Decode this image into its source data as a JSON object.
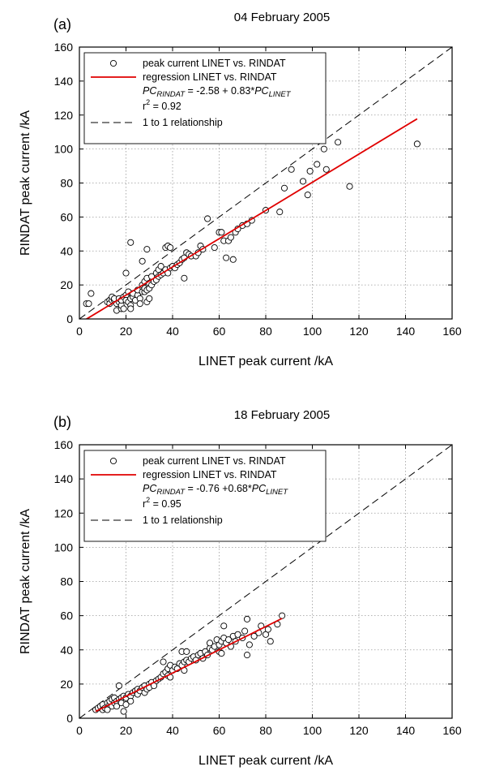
{
  "colors": {
    "regression": "#e00000",
    "one_to_one": "#000000",
    "points": "#000000"
  },
  "chart_data": [
    {
      "type": "scatter",
      "panel": "(a)",
      "title": "04 February 2005",
      "xlabel": "LINET peak current /kA",
      "ylabel": "RINDAT peak current /kA",
      "xlim": [
        0,
        160
      ],
      "ylim": [
        0,
        160
      ],
      "xticks": [
        0,
        20,
        40,
        60,
        80,
        100,
        120,
        140,
        160
      ],
      "yticks": [
        0,
        20,
        40,
        60,
        80,
        100,
        120,
        140,
        160
      ],
      "grid": true,
      "legend_placement": "top-left",
      "legend": {
        "points": "peak current LINET vs. RINDAT",
        "regression": "regression LINET vs. RINDAT",
        "eq_y": "PC",
        "eq_y_sub": "RINDAT",
        "eq_mid": " = -2.58 + 0.83*",
        "eq_x": "PC",
        "eq_x_sub": "LINET",
        "r2_prefix": "r",
        "r2_sup": "2",
        "r2_value": " = 0.92",
        "one_to_one": "1 to 1 relationship"
      },
      "regression": {
        "intercept": -2.58,
        "slope": 0.83,
        "x_range": [
          3,
          145
        ]
      },
      "one_to_one": {
        "x_range": [
          0,
          160
        ]
      },
      "points": [
        [
          3,
          9
        ],
        [
          4,
          9
        ],
        [
          5,
          15
        ],
        [
          12,
          10
        ],
        [
          13,
          11
        ],
        [
          13,
          9
        ],
        [
          14,
          11
        ],
        [
          14,
          13
        ],
        [
          15,
          11
        ],
        [
          15,
          12
        ],
        [
          16,
          9
        ],
        [
          16,
          5
        ],
        [
          17,
          10
        ],
        [
          17,
          12
        ],
        [
          18,
          6
        ],
        [
          18,
          8
        ],
        [
          18,
          11
        ],
        [
          19,
          13
        ],
        [
          19,
          6
        ],
        [
          20,
          14
        ],
        [
          20,
          27
        ],
        [
          20,
          11
        ],
        [
          21,
          10
        ],
        [
          21,
          16
        ],
        [
          22,
          45
        ],
        [
          22,
          12
        ],
        [
          22,
          8
        ],
        [
          22,
          6
        ],
        [
          23,
          13
        ],
        [
          23,
          15
        ],
        [
          24,
          11
        ],
        [
          25,
          14
        ],
        [
          25,
          17
        ],
        [
          26,
          12
        ],
        [
          26,
          9
        ],
        [
          27,
          16
        ],
        [
          27,
          20
        ],
        [
          27,
          34
        ],
        [
          28,
          16
        ],
        [
          28,
          18
        ],
        [
          28,
          22
        ],
        [
          29,
          10
        ],
        [
          29,
          17
        ],
        [
          29,
          24
        ],
        [
          29,
          41
        ],
        [
          30,
          18
        ],
        [
          30,
          21
        ],
        [
          30,
          12
        ],
        [
          31,
          25
        ],
        [
          31,
          20
        ],
        [
          32,
          22
        ],
        [
          33,
          23
        ],
        [
          33,
          27
        ],
        [
          34,
          25
        ],
        [
          34,
          29
        ],
        [
          35,
          26
        ],
        [
          35,
          31
        ],
        [
          36,
          27
        ],
        [
          37,
          29
        ],
        [
          37,
          42
        ],
        [
          38,
          43
        ],
        [
          38,
          27
        ],
        [
          39,
          42
        ],
        [
          39,
          30
        ],
        [
          40,
          31
        ],
        [
          41,
          30
        ],
        [
          42,
          32
        ],
        [
          43,
          33
        ],
        [
          44,
          35
        ],
        [
          45,
          24
        ],
        [
          45,
          36
        ],
        [
          46,
          39
        ],
        [
          47,
          38
        ],
        [
          48,
          37
        ],
        [
          50,
          37
        ],
        [
          51,
          39
        ],
        [
          52,
          43
        ],
        [
          53,
          41
        ],
        [
          55,
          59
        ],
        [
          58,
          42
        ],
        [
          60,
          51
        ],
        [
          61,
          51
        ],
        [
          62,
          46
        ],
        [
          63,
          36
        ],
        [
          64,
          46
        ],
        [
          65,
          48
        ],
        [
          66,
          35
        ],
        [
          67,
          51
        ],
        [
          68,
          53
        ],
        [
          70,
          55
        ],
        [
          72,
          56
        ],
        [
          74,
          58
        ],
        [
          80,
          64
        ],
        [
          86,
          63
        ],
        [
          88,
          77
        ],
        [
          91,
          88
        ],
        [
          96,
          81
        ],
        [
          98,
          73
        ],
        [
          99,
          87
        ],
        [
          102,
          91
        ],
        [
          105,
          100
        ],
        [
          106,
          88
        ],
        [
          111,
          104
        ],
        [
          116,
          78
        ],
        [
          145,
          103
        ]
      ]
    },
    {
      "type": "scatter",
      "panel": "(b)",
      "title": "18 February 2005",
      "xlabel": "LINET peak current /kA",
      "ylabel": "RINDAT peak current /kA",
      "xlim": [
        0,
        160
      ],
      "ylim": [
        0,
        160
      ],
      "xticks": [
        0,
        20,
        40,
        60,
        80,
        100,
        120,
        140,
        160
      ],
      "yticks": [
        0,
        20,
        40,
        60,
        80,
        100,
        120,
        140,
        160
      ],
      "grid": true,
      "legend_placement": "top-left",
      "legend": {
        "points": "peak current LINET vs. RINDAT",
        "regression": "regression LINET vs. RINDAT",
        "eq_y": "PC",
        "eq_y_sub": "RINDAT",
        "eq_mid": " = -0.76 +0.68*",
        "eq_x": "PC",
        "eq_x_sub": "LINET",
        "r2_prefix": "r",
        "r2_sup": "2",
        "r2_value": " = 0.95",
        "one_to_one": "1 to 1 relationship"
      },
      "regression": {
        "intercept": -0.76,
        "slope": 0.68,
        "x_range": [
          7,
          87
        ]
      },
      "one_to_one": {
        "x_range": [
          0,
          160
        ]
      },
      "points": [
        [
          7,
          5
        ],
        [
          8,
          6
        ],
        [
          9,
          7
        ],
        [
          10,
          5
        ],
        [
          10,
          8
        ],
        [
          11,
          6
        ],
        [
          12,
          9
        ],
        [
          12,
          5
        ],
        [
          13,
          8
        ],
        [
          13,
          10
        ],
        [
          14,
          7
        ],
        [
          14,
          11
        ],
        [
          15,
          9
        ],
        [
          15,
          12
        ],
        [
          16,
          10
        ],
        [
          16,
          7
        ],
        [
          17,
          19
        ],
        [
          17,
          11
        ],
        [
          18,
          12
        ],
        [
          18,
          9
        ],
        [
          19,
          13
        ],
        [
          19,
          4
        ],
        [
          20,
          12
        ],
        [
          20,
          8
        ],
        [
          21,
          14
        ],
        [
          22,
          13
        ],
        [
          22,
          10
        ],
        [
          23,
          15
        ],
        [
          24,
          16
        ],
        [
          25,
          14
        ],
        [
          25,
          17
        ],
        [
          26,
          16
        ],
        [
          27,
          18
        ],
        [
          28,
          15
        ],
        [
          28,
          19
        ],
        [
          29,
          17
        ],
        [
          30,
          20
        ],
        [
          30,
          18
        ],
        [
          31,
          21
        ],
        [
          32,
          19
        ],
        [
          33,
          22
        ],
        [
          34,
          23
        ],
        [
          35,
          24
        ],
        [
          36,
          33
        ],
        [
          36,
          26
        ],
        [
          37,
          27
        ],
        [
          38,
          25
        ],
        [
          38,
          29
        ],
        [
          39,
          31
        ],
        [
          39,
          24
        ],
        [
          40,
          28
        ],
        [
          41,
          30
        ],
        [
          42,
          29
        ],
        [
          43,
          32
        ],
        [
          44,
          39
        ],
        [
          44,
          31
        ],
        [
          45,
          33
        ],
        [
          45,
          28
        ],
        [
          46,
          39
        ],
        [
          46,
          34
        ],
        [
          47,
          33
        ],
        [
          48,
          35
        ],
        [
          49,
          36
        ],
        [
          50,
          34
        ],
        [
          51,
          37
        ],
        [
          52,
          38
        ],
        [
          53,
          35
        ],
        [
          54,
          39
        ],
        [
          55,
          37
        ],
        [
          56,
          41
        ],
        [
          56,
          44
        ],
        [
          57,
          40
        ],
        [
          58,
          42
        ],
        [
          59,
          46
        ],
        [
          60,
          43
        ],
        [
          60,
          39
        ],
        [
          61,
          45
        ],
        [
          61,
          38
        ],
        [
          62,
          47
        ],
        [
          62,
          54
        ],
        [
          63,
          44
        ],
        [
          64,
          46
        ],
        [
          65,
          42
        ],
        [
          66,
          48
        ],
        [
          67,
          45
        ],
        [
          68,
          49
        ],
        [
          70,
          47
        ],
        [
          71,
          51
        ],
        [
          72,
          58
        ],
        [
          72,
          37
        ],
        [
          73,
          43
        ],
        [
          75,
          48
        ],
        [
          77,
          50
        ],
        [
          78,
          54
        ],
        [
          80,
          49
        ],
        [
          81,
          52
        ],
        [
          82,
          45
        ],
        [
          85,
          55
        ],
        [
          87,
          60
        ]
      ]
    }
  ]
}
